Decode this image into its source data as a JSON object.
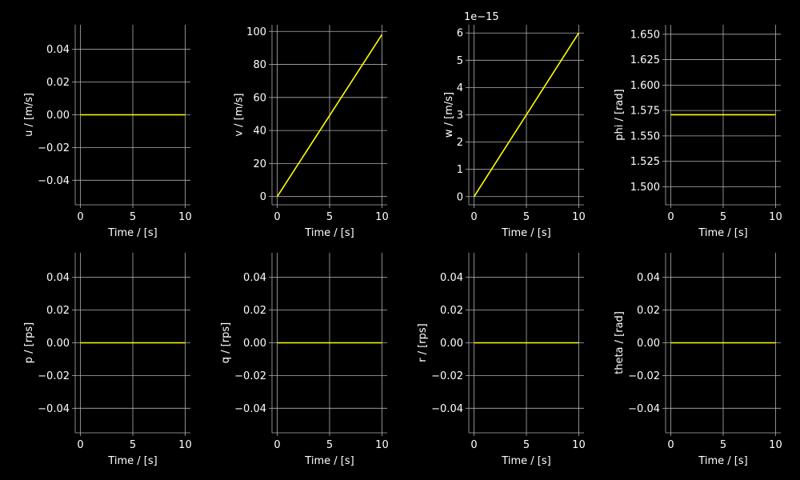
{
  "figure": {
    "background": "#000000",
    "grid_color": "#b0b0b0",
    "line_color": "#ffff00",
    "text_color": "#ffffff"
  },
  "chart_data": [
    {
      "type": "line",
      "xlabel": "Time / [s]",
      "ylabel": "u / [m/s]",
      "xlim": [
        -0.5,
        10.5
      ],
      "ylim": [
        -0.055,
        0.055
      ],
      "xticks": [
        0,
        5,
        10
      ],
      "xtick_labels": [
        "0",
        "5",
        "10"
      ],
      "yticks": [
        -0.04,
        -0.02,
        0,
        0.02,
        0.04
      ],
      "ytick_labels": [
        "−0.04",
        "−0.02",
        "0.00",
        "0.02",
        "0.04"
      ],
      "offset_label": "",
      "grid": true,
      "series": [
        {
          "x": [
            0,
            10
          ],
          "y": [
            0,
            0
          ]
        }
      ]
    },
    {
      "type": "line",
      "xlabel": "Time / [s]",
      "ylabel": "v / [m/s]",
      "xlim": [
        -0.5,
        10.5
      ],
      "ylim": [
        -5,
        104
      ],
      "xticks": [
        0,
        5,
        10
      ],
      "xtick_labels": [
        "0",
        "5",
        "10"
      ],
      "yticks": [
        0,
        20,
        40,
        60,
        80,
        100
      ],
      "ytick_labels": [
        "0",
        "20",
        "40",
        "60",
        "80",
        "100"
      ],
      "offset_label": "",
      "grid": true,
      "series": [
        {
          "x": [
            0,
            10
          ],
          "y": [
            0,
            98.1
          ]
        }
      ]
    },
    {
      "type": "line",
      "xlabel": "Time / [s]",
      "ylabel": "w / [m/s]",
      "xlim": [
        -0.5,
        10.5
      ],
      "ylim": [
        -0.3,
        6.3
      ],
      "xticks": [
        0,
        5,
        10
      ],
      "xtick_labels": [
        "0",
        "5",
        "10"
      ],
      "yticks": [
        0,
        1,
        2,
        3,
        4,
        5,
        6
      ],
      "ytick_labels": [
        "0",
        "1",
        "2",
        "3",
        "4",
        "5",
        "6"
      ],
      "offset_label": "1e−15",
      "grid": true,
      "series": [
        {
          "x": [
            0,
            10
          ],
          "y": [
            0,
            6
          ]
        }
      ]
    },
    {
      "type": "line",
      "xlabel": "Time / [s]",
      "ylabel": "phi / [rad]",
      "xlim": [
        -0.5,
        10.5
      ],
      "ylim": [
        1.4822,
        1.6593
      ],
      "xticks": [
        0,
        5,
        10
      ],
      "xtick_labels": [
        "0",
        "5",
        "10"
      ],
      "yticks": [
        1.5,
        1.525,
        1.55,
        1.575,
        1.6,
        1.625,
        1.65
      ],
      "ytick_labels": [
        "1.500",
        "1.525",
        "1.550",
        "1.575",
        "1.600",
        "1.625",
        "1.650"
      ],
      "offset_label": "",
      "grid": true,
      "series": [
        {
          "x": [
            0,
            10
          ],
          "y": [
            1.5708,
            1.5708
          ]
        }
      ]
    },
    {
      "type": "line",
      "xlabel": "Time / [s]",
      "ylabel": "p / [rps]",
      "xlim": [
        -0.5,
        10.5
      ],
      "ylim": [
        -0.055,
        0.055
      ],
      "xticks": [
        0,
        5,
        10
      ],
      "xtick_labels": [
        "0",
        "5",
        "10"
      ],
      "yticks": [
        -0.04,
        -0.02,
        0,
        0.02,
        0.04
      ],
      "ytick_labels": [
        "−0.04",
        "−0.02",
        "0.00",
        "0.02",
        "0.04"
      ],
      "offset_label": "",
      "grid": true,
      "series": [
        {
          "x": [
            0,
            10
          ],
          "y": [
            0,
            0
          ]
        }
      ]
    },
    {
      "type": "line",
      "xlabel": "Time / [s]",
      "ylabel": "q / [rps]",
      "xlim": [
        -0.5,
        10.5
      ],
      "ylim": [
        -0.055,
        0.055
      ],
      "xticks": [
        0,
        5,
        10
      ],
      "xtick_labels": [
        "0",
        "5",
        "10"
      ],
      "yticks": [
        -0.04,
        -0.02,
        0,
        0.02,
        0.04
      ],
      "ytick_labels": [
        "−0.04",
        "−0.02",
        "0.00",
        "0.02",
        "0.04"
      ],
      "offset_label": "",
      "grid": true,
      "series": [
        {
          "x": [
            0,
            10
          ],
          "y": [
            0,
            0
          ]
        }
      ]
    },
    {
      "type": "line",
      "xlabel": "Time / [s]",
      "ylabel": "r / [rps]",
      "xlim": [
        -0.5,
        10.5
      ],
      "ylim": [
        -0.055,
        0.055
      ],
      "xticks": [
        0,
        5,
        10
      ],
      "xtick_labels": [
        "0",
        "5",
        "10"
      ],
      "yticks": [
        -0.04,
        -0.02,
        0,
        0.02,
        0.04
      ],
      "ytick_labels": [
        "−0.04",
        "−0.02",
        "0.00",
        "0.02",
        "0.04"
      ],
      "offset_label": "",
      "grid": true,
      "series": [
        {
          "x": [
            0,
            10
          ],
          "y": [
            0,
            0
          ]
        }
      ]
    },
    {
      "type": "line",
      "xlabel": "Time / [s]",
      "ylabel": "theta / [rad]",
      "xlim": [
        -0.5,
        10.5
      ],
      "ylim": [
        -0.055,
        0.055
      ],
      "xticks": [
        0,
        5,
        10
      ],
      "xtick_labels": [
        "0",
        "5",
        "10"
      ],
      "yticks": [
        -0.04,
        -0.02,
        0,
        0.02,
        0.04
      ],
      "ytick_labels": [
        "−0.04",
        "−0.02",
        "0.00",
        "0.02",
        "0.04"
      ],
      "offset_label": "",
      "grid": true,
      "series": [
        {
          "x": [
            0,
            10
          ],
          "y": [
            0,
            0
          ]
        }
      ]
    }
  ]
}
